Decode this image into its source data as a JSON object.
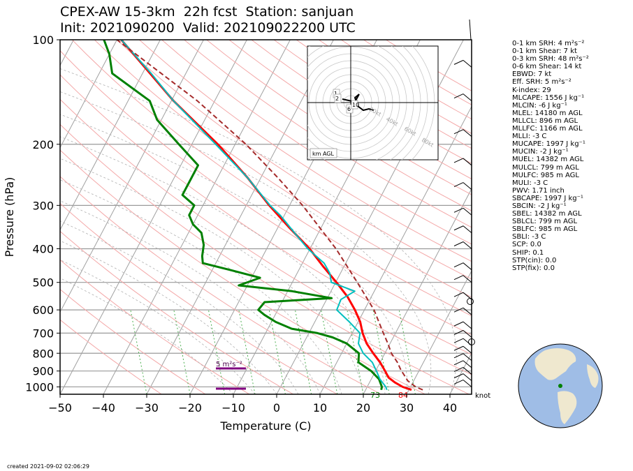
{
  "title": {
    "line1": "CPEX-AW 15-3km  22h fcst  Station: sanjuan",
    "line2": "Init: 2021090200  Valid: 202109022200 UTC"
  },
  "footer": {
    "created": "created 2021-09-02 02:06:29"
  },
  "colors": {
    "temperature": "#ff0000",
    "dewpoint": "#008000",
    "virtual_temp": "#00bfbf",
    "parcel": "#a52a2a",
    "srh_bar": "#800080",
    "isotherm": "#a0a0a0",
    "dry_adiabat": "#f4a8a8",
    "mixing_ratio": "#4caf50"
  },
  "chart_data": {
    "type": "line",
    "xlabel": "Temperature (C)",
    "ylabel": "Pressure (hPa)",
    "xlim": [
      -50,
      45
    ],
    "ylim": [
      1050,
      100
    ],
    "y_scale": "log",
    "skew": true,
    "x_ticks": [
      "−50",
      "−40",
      "−30",
      "−20",
      "−10",
      "0",
      "10",
      "20",
      "30",
      "40"
    ],
    "y_ticks": [
      "100",
      "200",
      "300",
      "400",
      "500",
      "600",
      "700",
      "800",
      "900",
      "1000"
    ],
    "surface_labels": {
      "dewpoint": "73",
      "temperature": "84"
    },
    "srh_bar_label": "5 m²s⁻²",
    "wind_units_label": "knot",
    "series": [
      {
        "role": "temperature",
        "points": [
          [
            1020,
            30.6
          ],
          [
            1000,
            28.2
          ],
          [
            970,
            25.8
          ],
          [
            940,
            23.8
          ],
          [
            900,
            22.2
          ],
          [
            850,
            20.0
          ],
          [
            800,
            17.3
          ],
          [
            750,
            14.6
          ],
          [
            700,
            12.4
          ],
          [
            650,
            10.5
          ],
          [
            600,
            7.8
          ],
          [
            550,
            4.5
          ],
          [
            500,
            0.2
          ],
          [
            450,
            -4.8
          ],
          [
            400,
            -10.1
          ],
          [
            350,
            -17.0
          ],
          [
            300,
            -24.7
          ],
          [
            250,
            -33.0
          ],
          [
            200,
            -44.0
          ],
          [
            150,
            -59.5
          ],
          [
            100,
            -79.0
          ]
        ]
      },
      {
        "role": "dewpoint",
        "points": [
          [
            1020,
            23.6
          ],
          [
            1000,
            23.4
          ],
          [
            950,
            21.8
          ],
          [
            900,
            19.0
          ],
          [
            850,
            15.0
          ],
          [
            800,
            14.0
          ],
          [
            750,
            10.0
          ],
          [
            720,
            6.0
          ],
          [
            700,
            2.0
          ],
          [
            680,
            -4.5
          ],
          [
            650,
            -9.0
          ],
          [
            620,
            -12.5
          ],
          [
            600,
            -14.5
          ],
          [
            570,
            -14.0
          ],
          [
            555,
            1.0
          ],
          [
            530,
            -9.0
          ],
          [
            510,
            -22.0
          ],
          [
            485,
            -18.0
          ],
          [
            460,
            -26.0
          ],
          [
            440,
            -33.0
          ],
          [
            420,
            -34.0
          ],
          [
            390,
            -35.0
          ],
          [
            360,
            -37.0
          ],
          [
            340,
            -40.0
          ],
          [
            320,
            -42.0
          ],
          [
            300,
            -42.0
          ],
          [
            280,
            -46.0
          ],
          [
            250,
            -46.0
          ],
          [
            230,
            -46.0
          ],
          [
            200,
            -53.0
          ],
          [
            170,
            -61.0
          ],
          [
            150,
            -65.0
          ],
          [
            125,
            -77.0
          ],
          [
            110,
            -80.0
          ],
          [
            100,
            -83.0
          ]
        ]
      },
      {
        "role": "virtual_temperature",
        "points": [
          [
            1020,
            24.9
          ],
          [
            1000,
            24.3
          ],
          [
            950,
            22.0
          ],
          [
            900,
            20.2
          ],
          [
            850,
            18.2
          ],
          [
            800,
            15.0
          ],
          [
            750,
            12.7
          ],
          [
            700,
            11.8
          ],
          [
            650,
            8.0
          ],
          [
            600,
            3.6
          ],
          [
            560,
            3.3
          ],
          [
            530,
            5.5
          ],
          [
            500,
            -1.0
          ],
          [
            470,
            -2.5
          ],
          [
            440,
            -5.0
          ],
          [
            400,
            -10.5
          ],
          [
            360,
            -15.5
          ],
          [
            320,
            -21.0
          ],
          [
            300,
            -24.5
          ],
          [
            250,
            -33.0
          ],
          [
            200,
            -44.5
          ],
          [
            150,
            -59.5
          ],
          [
            125,
            -68.0
          ],
          [
            100,
            -79.0
          ]
        ]
      },
      {
        "role": "parcel",
        "points": [
          [
            1020,
            33.2
          ],
          [
            1000,
            31.2
          ],
          [
            960,
            28.6
          ],
          [
            920,
            26.9
          ],
          [
            896,
            25.8
          ],
          [
            850,
            24.0
          ],
          [
            800,
            21.5
          ],
          [
            750,
            19.5
          ],
          [
            700,
            17.2
          ],
          [
            600,
            12.2
          ],
          [
            500,
            5.0
          ],
          [
            400,
            -4.0
          ],
          [
            300,
            -17.0
          ],
          [
            250,
            -26.0
          ],
          [
            200,
            -37.5
          ],
          [
            150,
            -54.0
          ],
          [
            100,
            -80.0
          ]
        ]
      }
    ],
    "hodograph": {
      "ring_labels": [
        "20kt",
        "40kt",
        "60kt",
        "80kt"
      ],
      "height_labels": [
        "1",
        "2",
        "6",
        "10"
      ],
      "unit_label": "km AGL"
    }
  },
  "stats": [
    "0-1 km SRH: 4 m²s⁻²",
    "0-1 km Shear: 7 kt",
    "0-3 km SRH: 48 m²s⁻²",
    "0-6 km Shear: 14 kt",
    "EBWD: 7 kt",
    "Eff. SRH: 5 m²s⁻²",
    "K-index: 29",
    "MLCAPE: 1556 J kg⁻¹",
    "MLCIN: -6 J kg⁻¹",
    "MLEL: 14180 m AGL",
    "MLLCL: 896 m AGL",
    "MLLFC: 1166 m AGL",
    "MLLI: -3 C",
    "MUCAPE: 1997 J kg⁻¹",
    "MUCIN: -2 J kg⁻¹",
    "MUEL: 14382 m AGL",
    "MULCL: 799 m AGL",
    "MULFC: 985 m AGL",
    "MULI: -3 C",
    "PWV: 1.71 inch",
    "SBCAPE: 1997 J kg⁻¹",
    "SBCIN: -2 J kg⁻¹",
    "SBEL: 14382 m AGL",
    "SBLCL: 799 m AGL",
    "SBLFC: 985 m AGL",
    "SBLI: -3 C",
    "SCP: 0.0",
    "SHIP: 0.1",
    "STP(cin): 0.0",
    "STP(fix): 0.0"
  ]
}
